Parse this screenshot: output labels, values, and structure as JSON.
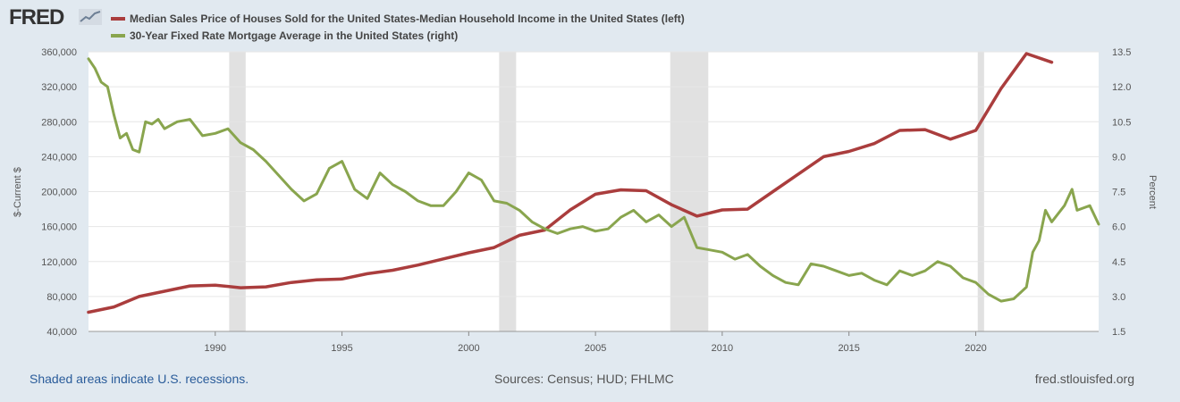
{
  "brand": {
    "logo_text": "FRED"
  },
  "colors": {
    "background": "#e1e9f0",
    "plot_bg": "#ffffff",
    "recession": "#e1e1e1",
    "series_red": "#aa3d3d",
    "series_green": "#89a54e",
    "link": "#2a5c9a"
  },
  "chart_data": {
    "type": "line",
    "title": "",
    "xlabel": "",
    "ylabel_left": "$-Current $",
    "ylabel_right": "Percent",
    "xlim": [
      1985.0,
      2024.85
    ],
    "ylim_left": [
      40000,
      360000
    ],
    "ylim_right": [
      1.5,
      13.5
    ],
    "x_ticks": [
      1990,
      1995,
      2000,
      2005,
      2010,
      2015,
      2020
    ],
    "y_ticks_left": [
      "40,000",
      "80,000",
      "120,000",
      "160,000",
      "200,000",
      "240,000",
      "280,000",
      "320,000",
      "360,000"
    ],
    "y_tick_values_left": [
      40000,
      80000,
      120000,
      160000,
      200000,
      240000,
      280000,
      320000,
      360000
    ],
    "y_ticks_right": [
      "1.5",
      "3.0",
      "4.5",
      "6.0",
      "7.5",
      "9.0",
      "10.5",
      "12.0",
      "13.5"
    ],
    "y_tick_values_right": [
      1.5,
      3.0,
      4.5,
      6.0,
      7.5,
      9.0,
      10.5,
      12.0,
      13.5
    ],
    "recessions": [
      [
        1990.55,
        1991.2
      ],
      [
        2001.2,
        2001.87
      ],
      [
        2007.95,
        2009.45
      ],
      [
        2020.08,
        2020.33
      ]
    ],
    "series": [
      {
        "name": "Median Sales Price of Houses Sold for the United States-Median Household Income in the United States (left)",
        "axis": "left",
        "x": [
          1985,
          1986,
          1987,
          1988,
          1989,
          1990,
          1991,
          1992,
          1993,
          1994,
          1995,
          1996,
          1997,
          1998,
          1999,
          2000,
          2001,
          2002,
          2003,
          2004,
          2005,
          2006,
          2007,
          2008,
          2009,
          2010,
          2011,
          2012,
          2013,
          2014,
          2015,
          2016,
          2017,
          2018,
          2019,
          2020,
          2021,
          2022,
          2023
        ],
        "values": [
          62000,
          68000,
          80000,
          86000,
          92000,
          93000,
          90000,
          91000,
          96000,
          99000,
          100000,
          106000,
          110000,
          116000,
          123000,
          130000,
          136000,
          150000,
          156000,
          179000,
          197000,
          202000,
          201000,
          185000,
          172000,
          179000,
          180000,
          200000,
          220000,
          240000,
          246000,
          255000,
          270000,
          271000,
          260000,
          270000,
          318000,
          358000,
          348000
        ]
      },
      {
        "name": "30-Year Fixed Rate Mortgage Average in the United States (right)",
        "axis": "right",
        "x": [
          1985.0,
          1985.25,
          1985.5,
          1985.75,
          1986.0,
          1986.25,
          1986.5,
          1986.75,
          1987.0,
          1987.25,
          1987.5,
          1987.75,
          1988.0,
          1988.5,
          1989.0,
          1989.5,
          1990.0,
          1990.5,
          1991.0,
          1991.5,
          1992.0,
          1992.5,
          1993.0,
          1993.5,
          1994.0,
          1994.5,
          1995.0,
          1995.5,
          1996.0,
          1996.5,
          1997.0,
          1997.5,
          1998.0,
          1998.5,
          1999.0,
          1999.5,
          2000.0,
          2000.5,
          2001.0,
          2001.5,
          2002.0,
          2002.5,
          2003.0,
          2003.5,
          2004.0,
          2004.5,
          2005.0,
          2005.5,
          2006.0,
          2006.5,
          2007.0,
          2007.5,
          2008.0,
          2008.5,
          2009.0,
          2009.5,
          2010.0,
          2010.5,
          2011.0,
          2011.5,
          2012.0,
          2012.5,
          2013.0,
          2013.5,
          2014.0,
          2014.5,
          2015.0,
          2015.5,
          2016.0,
          2016.5,
          2017.0,
          2017.5,
          2018.0,
          2018.5,
          2019.0,
          2019.5,
          2020.0,
          2020.5,
          2021.0,
          2021.5,
          2022.0,
          2022.25,
          2022.5,
          2022.75,
          2023.0,
          2023.5,
          2023.8,
          2024.0,
          2024.5,
          2024.85
        ],
        "values": [
          13.2,
          12.8,
          12.2,
          12.0,
          10.8,
          9.8,
          10.0,
          9.3,
          9.2,
          10.5,
          10.4,
          10.6,
          10.2,
          10.5,
          10.6,
          9.9,
          10.0,
          10.2,
          9.6,
          9.3,
          8.8,
          8.2,
          7.6,
          7.1,
          7.4,
          8.5,
          8.8,
          7.6,
          7.2,
          8.3,
          7.8,
          7.5,
          7.1,
          6.9,
          6.9,
          7.5,
          8.3,
          8.0,
          7.1,
          7.0,
          6.7,
          6.2,
          5.9,
          5.7,
          5.9,
          6.0,
          5.8,
          5.9,
          6.4,
          6.7,
          6.2,
          6.5,
          6.0,
          6.4,
          5.1,
          5.0,
          4.9,
          4.6,
          4.8,
          4.3,
          3.9,
          3.6,
          3.5,
          4.4,
          4.3,
          4.1,
          3.9,
          4.0,
          3.7,
          3.5,
          4.1,
          3.9,
          4.1,
          4.5,
          4.3,
          3.8,
          3.6,
          3.1,
          2.8,
          2.9,
          3.4,
          4.9,
          5.4,
          6.7,
          6.2,
          6.9,
          7.6,
          6.7,
          6.9,
          6.1
        ]
      }
    ]
  },
  "legend": [
    {
      "label": "Median Sales Price of Houses Sold for the United States-Median Household Income in the United States (left)",
      "color": "#aa3d3d"
    },
    {
      "label": "30-Year Fixed Rate Mortgage Average in the United States (right)",
      "color": "#89a54e"
    }
  ],
  "footer": {
    "recession_note": "Shaded areas indicate U.S. recessions.",
    "sources": "Sources: Census; HUD; FHLMC",
    "site": "fred.stlouisfed.org"
  }
}
